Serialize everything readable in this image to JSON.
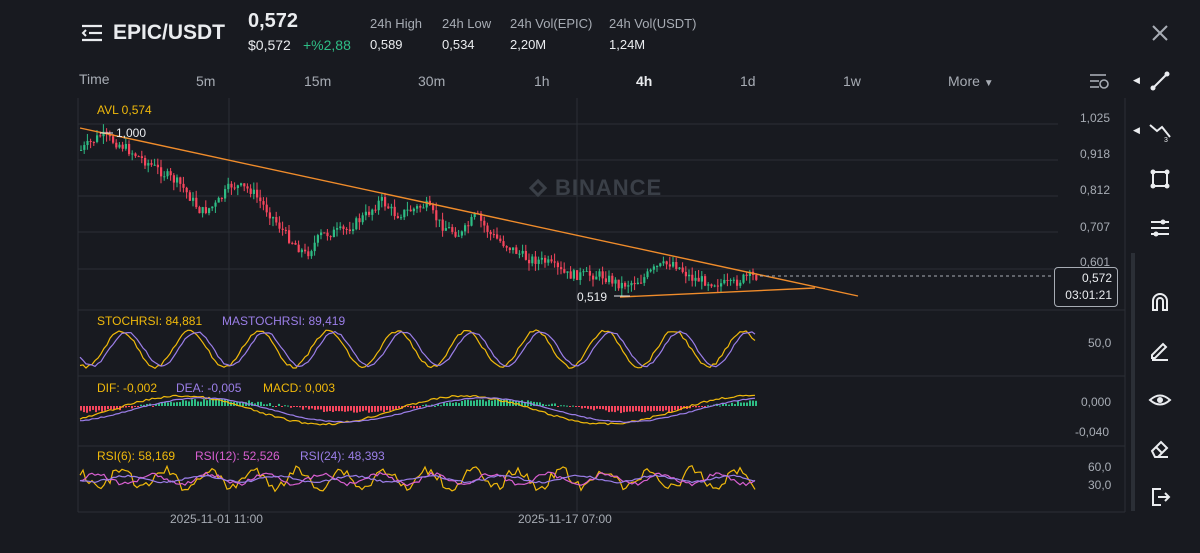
{
  "header": {
    "pair": "EPIC/USDT",
    "price": "0,572",
    "price_usd": "$0,572",
    "change": "+%2,88",
    "stats": [
      {
        "label": "24h High",
        "value": "0,589"
      },
      {
        "label": "24h Low",
        "value": "0,534"
      },
      {
        "label": "24h Vol(EPIC)",
        "value": "2,20M"
      },
      {
        "label": "24h Vol(USDT)",
        "value": "1,24M"
      }
    ]
  },
  "timeframes": [
    "Time",
    "5m",
    "15m",
    "30m",
    "1h",
    "4h",
    "1d",
    "1w",
    "More"
  ],
  "active_timeframe": "4h",
  "chart": {
    "avl": "AVL 0,574",
    "high_marker": "1,000",
    "low_marker": "0,519",
    "watermark": "BINANCE",
    "price_axis": [
      "1,025",
      "0,918",
      "0,812",
      "0,707",
      "0,601"
    ],
    "last_price": "0,572",
    "countdown": "03:01:21",
    "x_axis": [
      "2025-11-01 11:00",
      "2025-11-17 07:00"
    ]
  },
  "stochrsi": {
    "stoch": "STOCHRSI: 84,881",
    "ma": "MASTOCHRSI: 89,419",
    "axis": "50,0"
  },
  "macd": {
    "dif": "DIF: -0,002",
    "dea": "DEA: -0,005",
    "macd": "MACD: 0,003",
    "axis": [
      "0,000",
      "-0,040"
    ]
  },
  "rsi": {
    "rsi6": "RSI(6): 58,169",
    "rsi12": "RSI(12): 52,526",
    "rsi24": "RSI(24): 48,393",
    "axis": [
      "60,0",
      "30,0"
    ]
  },
  "colors": {
    "up": "#2ebd85",
    "down": "#f6465d",
    "yellow": "#f0b90b",
    "purple": "#9b7ee8",
    "pink": "#d85fd0",
    "trend": "#f08c2b"
  },
  "icons": {
    "menu": "menu-icon",
    "close": "close-icon",
    "settings": "chart-settings-icon",
    "tools": [
      "trendline-icon",
      "fib-icon",
      "shape-icon",
      "indicator-icon",
      "magnet-icon",
      "pencil-icon",
      "eye-icon",
      "eraser-icon",
      "exit-icon"
    ]
  }
}
